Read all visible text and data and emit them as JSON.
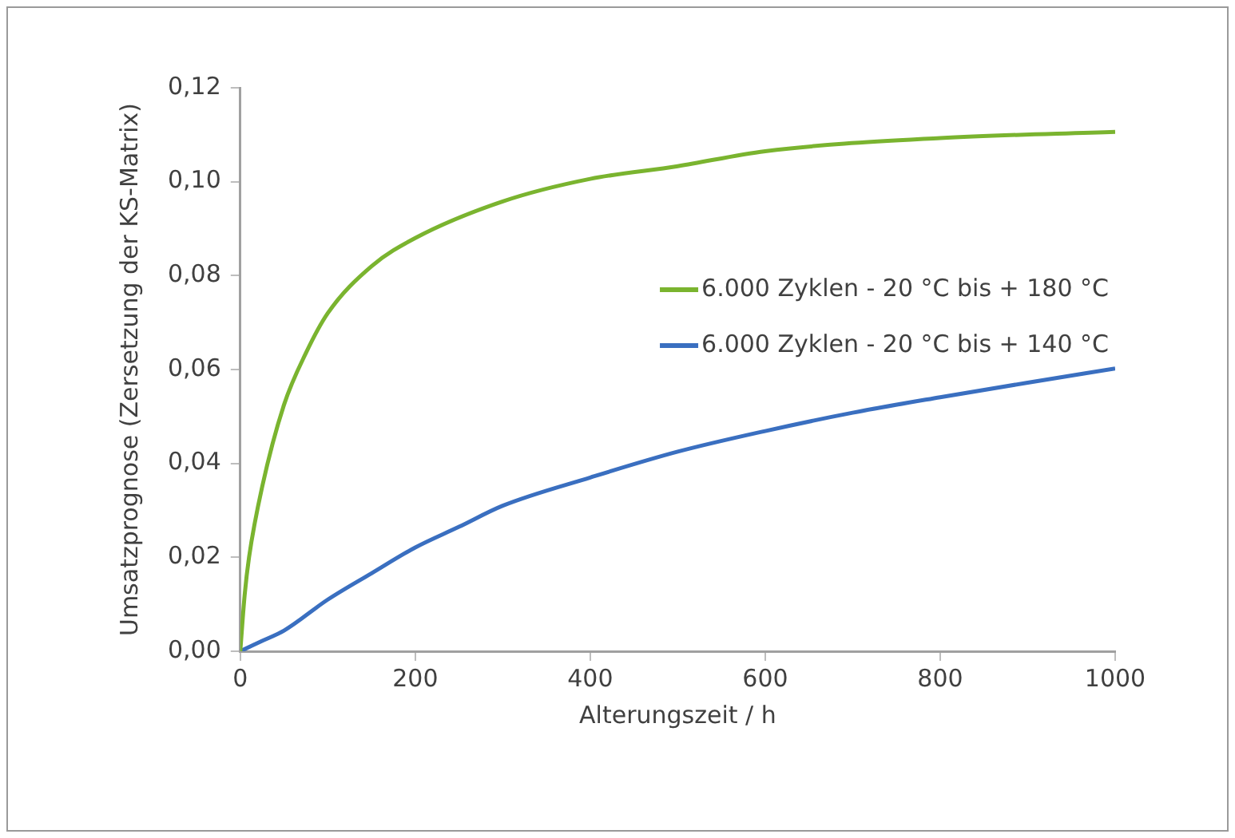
{
  "chart_data": {
    "type": "line",
    "xlabel": "Alterungszeit / h",
    "ylabel": "Umsatzprognose (Zersetzung der KS-Matrix)",
    "xlim": [
      0,
      1000
    ],
    "xticks": [
      0,
      200,
      400,
      600,
      800,
      1000
    ],
    "ylim": [
      0,
      0.12
    ],
    "yticks": [
      {
        "value": 0,
        "label": "0,00"
      },
      {
        "value": 0.02,
        "label": "0,02"
      },
      {
        "value": 0.04,
        "label": "0,04"
      },
      {
        "value": 0.06,
        "label": "0,06"
      },
      {
        "value": 0.08,
        "label": "0,08"
      },
      {
        "value": 0.1,
        "label": "0,10"
      },
      {
        "value": 0.12,
        "label": "0,12"
      }
    ],
    "grid": false,
    "legend": "right",
    "marker": "none",
    "line_style": "solid",
    "series": [
      {
        "name": "6.000 Zyklen - 20 °C bis + 180 °C",
        "color": "#7ab42f",
        "x": [
          0,
          5,
          10,
          25,
          50,
          75,
          100,
          150,
          200,
          300,
          400,
          500,
          600,
          800,
          1000
        ],
        "values": [
          0,
          0.012,
          0.02,
          0.035,
          0.0525,
          0.0635,
          0.072,
          0.082,
          0.088,
          0.0958,
          0.1006,
          0.1033,
          0.1065,
          0.1093,
          0.1106
        ]
      },
      {
        "name": "6.000 Zyklen - 20 °C bis + 140 °C",
        "color": "#3a6fc0",
        "x": [
          0,
          25,
          50,
          100,
          150,
          200,
          250,
          300,
          400,
          500,
          600,
          700,
          800,
          900,
          1000
        ],
        "values": [
          0,
          0.0022,
          0.0044,
          0.011,
          0.0166,
          0.0221,
          0.0265,
          0.031,
          0.037,
          0.0425,
          0.0469,
          0.0508,
          0.0541,
          0.0572,
          0.0602
        ]
      }
    ]
  }
}
